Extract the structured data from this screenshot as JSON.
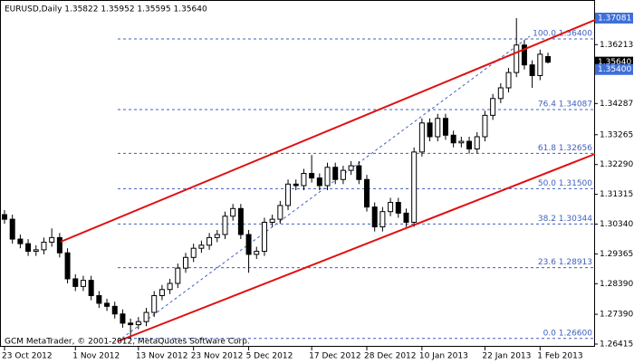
{
  "chart_data": {
    "type": "candlestick",
    "header": "EURUSD,Daily  1.35822 1.35952 1.35595 1.35640",
    "footer": "GCM MetaTrader, © 2001-2012, MetaQuotes Software Corp.",
    "categories": [
      "23 Oct 2012",
      null,
      null,
      null,
      null,
      null,
      null,
      null,
      null,
      "1 Nov 2012",
      null,
      null,
      null,
      null,
      null,
      null,
      null,
      "13 Nov 2012",
      null,
      null,
      null,
      null,
      null,
      null,
      "23 Nov 2012",
      null,
      null,
      null,
      null,
      null,
      null,
      "5 Dec 2012",
      null,
      null,
      null,
      null,
      null,
      null,
      null,
      "17 Dec 2012",
      null,
      null,
      null,
      null,
      null,
      null,
      "28 Dec 2012",
      null,
      null,
      null,
      null,
      null,
      null,
      "10 Jan 2013",
      null,
      null,
      null,
      null,
      null,
      null,
      null,
      "22 Jan 2013",
      null,
      null,
      null,
      null,
      null,
      null,
      "1 Feb 2013",
      null
    ],
    "open": [
      1.3065,
      1.305,
      1.2985,
      1.297,
      1.2945,
      1.295,
      1.2975,
      1.299,
      1.294,
      1.2855,
      1.283,
      1.285,
      1.28,
      1.2775,
      1.2765,
      1.274,
      1.271,
      1.2705,
      1.2715,
      1.2745,
      1.28,
      1.282,
      1.284,
      1.289,
      1.2925,
      1.2955,
      1.2965,
      1.299,
      1.3,
      1.306,
      1.3085,
      1.3,
      1.2935,
      1.2945,
      1.304,
      1.305,
      1.3095,
      1.3165,
      1.316,
      1.32,
      1.3185,
      1.316,
      1.322,
      1.318,
      1.321,
      1.3225,
      1.318,
      1.309,
      1.3025,
      1.3075,
      1.3105,
      1.307,
      1.304,
      1.327,
      1.3365,
      1.332,
      1.338,
      1.3325,
      1.33,
      1.3305,
      1.328,
      1.332,
      1.339,
      1.3445,
      1.348,
      1.353,
      1.362,
      1.3555,
      1.352,
      1.35822
    ],
    "high": [
      1.308,
      1.3065,
      1.3,
      1.2985,
      1.2965,
      1.299,
      1.302,
      1.3005,
      1.2955,
      1.287,
      1.2865,
      1.2865,
      1.2815,
      1.279,
      1.278,
      1.2755,
      1.2725,
      1.273,
      1.276,
      1.2815,
      1.2835,
      1.2855,
      1.2905,
      1.294,
      1.297,
      1.298,
      1.3005,
      1.3015,
      1.3075,
      1.31,
      1.31,
      1.3015,
      1.296,
      1.3055,
      1.3065,
      1.311,
      1.318,
      1.318,
      1.3215,
      1.326,
      1.32,
      1.3235,
      1.3235,
      1.3225,
      1.324,
      1.324,
      1.3195,
      1.3105,
      1.309,
      1.312,
      1.312,
      1.3085,
      1.3285,
      1.338,
      1.338,
      1.3395,
      1.3395,
      1.334,
      1.332,
      1.332,
      1.3335,
      1.3405,
      1.346,
      1.3495,
      1.3545,
      1.3708,
      1.3635,
      1.357,
      1.3605,
      1.35952
    ],
    "low": [
      1.3035,
      1.297,
      1.2955,
      1.293,
      1.293,
      1.2935,
      1.296,
      1.2925,
      1.284,
      1.2815,
      1.2815,
      1.2785,
      1.276,
      1.275,
      1.2725,
      1.2695,
      1.266,
      1.269,
      1.27,
      1.273,
      1.2785,
      1.2805,
      1.2825,
      1.2875,
      1.291,
      1.294,
      1.295,
      1.2975,
      1.2985,
      1.3045,
      1.2985,
      1.2875,
      1.292,
      1.293,
      1.3025,
      1.3035,
      1.308,
      1.3145,
      1.3145,
      1.317,
      1.3145,
      1.3145,
      1.3165,
      1.3165,
      1.3195,
      1.3165,
      1.3075,
      1.301,
      1.301,
      1.306,
      1.3055,
      1.3025,
      1.3025,
      1.3255,
      1.3305,
      1.3305,
      1.331,
      1.3285,
      1.3285,
      1.3265,
      1.3265,
      1.3305,
      1.3375,
      1.343,
      1.3465,
      1.3515,
      1.354,
      1.348,
      1.3505,
      1.35595
    ],
    "close": [
      1.305,
      1.2985,
      1.297,
      1.2945,
      1.295,
      1.2975,
      1.299,
      1.294,
      1.2855,
      1.283,
      1.285,
      1.28,
      1.2775,
      1.2765,
      1.274,
      1.271,
      1.2705,
      1.2715,
      1.2745,
      1.28,
      1.282,
      1.284,
      1.289,
      1.2925,
      1.2955,
      1.2965,
      1.299,
      1.3,
      1.306,
      1.3085,
      1.3,
      1.2935,
      1.2945,
      1.304,
      1.305,
      1.3095,
      1.3165,
      1.316,
      1.32,
      1.3185,
      1.316,
      1.322,
      1.318,
      1.321,
      1.3225,
      1.318,
      1.309,
      1.3025,
      1.3075,
      1.3105,
      1.307,
      1.304,
      1.327,
      1.3365,
      1.332,
      1.338,
      1.3325,
      1.33,
      1.3305,
      1.328,
      1.332,
      1.339,
      1.3445,
      1.348,
      1.353,
      1.362,
      1.3555,
      1.352,
      1.359,
      1.3564
    ],
    "up_color": "#ffffff",
    "down_color": "#000000",
    "ylim": [
      1.26415,
      1.37081
    ],
    "yticks": [
      1.36213,
      1.34287,
      1.33265,
      {
        "value": 1.3229,
        "label": "1.32290"
      },
      1.31315,
      {
        "value": 1.3034,
        "label": "1.30340"
      },
      1.29365,
      {
        "value": 1.2839,
        "label": "1.28390"
      },
      {
        "value": 1.2739,
        "label": "1.27390"
      },
      1.26415
    ],
    "price_labels": [
      {
        "value": 1.37081,
        "label": "1.37081",
        "color": "#3f6fd8"
      },
      {
        "value": 1.3564,
        "label": "1.35640",
        "color": "#000000"
      },
      {
        "value": 1.354,
        "label": "1.35400",
        "color": "#3f6fd8"
      }
    ],
    "fib_color": "#3f5fbf",
    "fib_levels": [
      {
        "value": 1.364,
        "label": "100.0 1.36400"
      },
      {
        "value": 1.34087,
        "label": "76.4 1.34087"
      },
      {
        "value": 1.32656,
        "label": "61.8 1.32656"
      },
      {
        "value": 1.315,
        "label": "50.0 1.31500"
      },
      {
        "value": 1.30344,
        "label": "38.2 1.30344"
      },
      {
        "value": 1.28913,
        "label": "23.6 1.28913"
      },
      {
        "value": 1.266,
        "label": "0.0 1.26600"
      }
    ]
  }
}
